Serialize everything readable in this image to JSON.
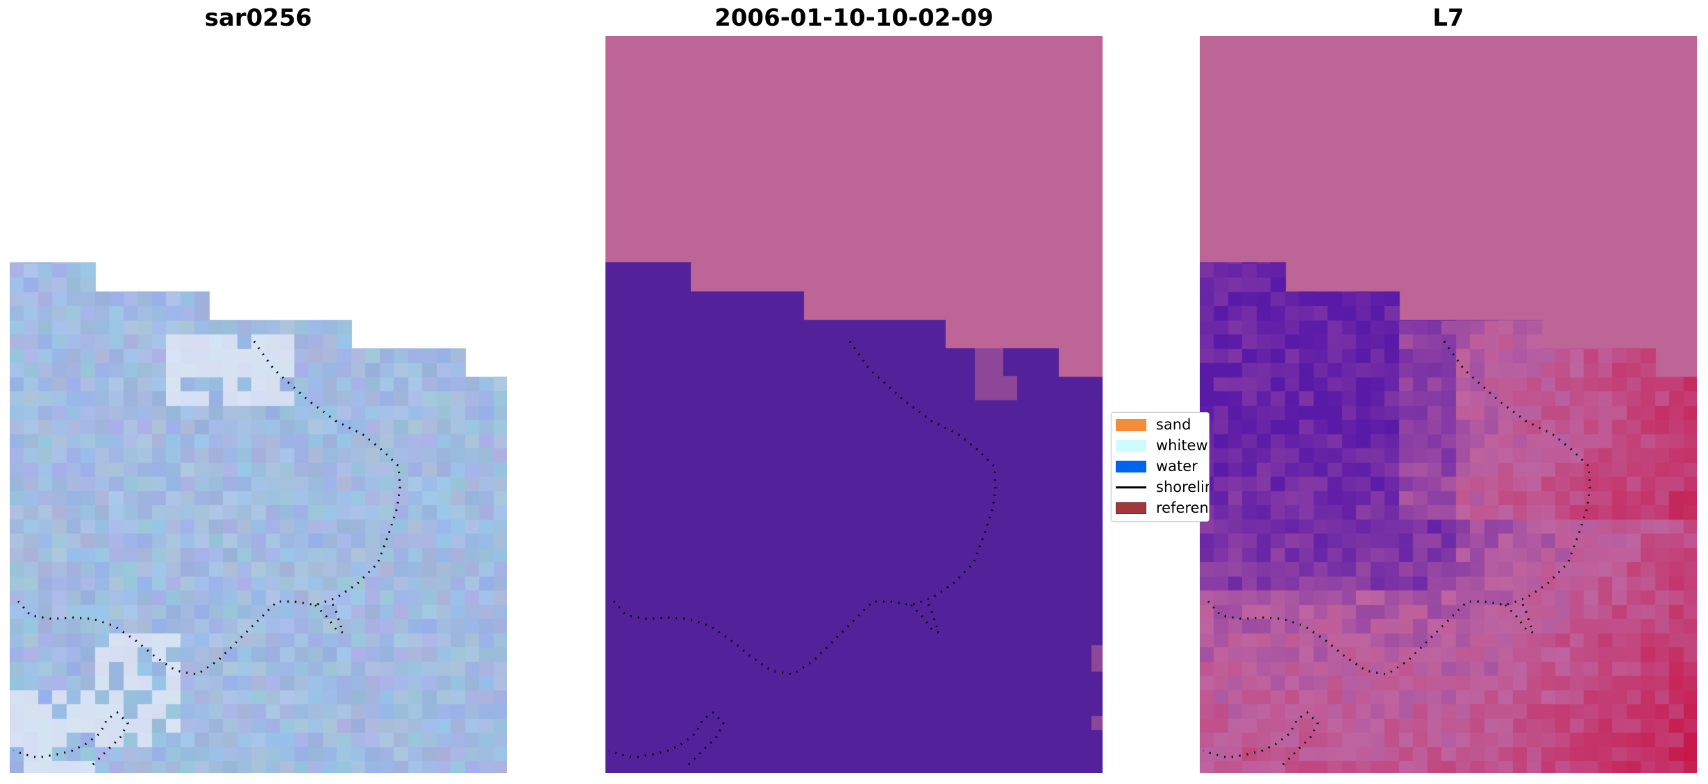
{
  "panels": [
    {
      "title": "sar0256"
    },
    {
      "title": "2006-01-10-10-02-09"
    },
    {
      "title": "L7"
    }
  ],
  "legend": {
    "items": [
      {
        "label": "sand",
        "color": "#f58c3c",
        "kind": "patch"
      },
      {
        "label": "whitewater",
        "color": "#ccfcfc",
        "kind": "patch"
      },
      {
        "label": "water",
        "color": "#0064f0",
        "kind": "patch"
      },
      {
        "label": "shoreline",
        "color": "#000000",
        "kind": "line"
      },
      {
        "label": "reference",
        "color": "#a0383c",
        "kind": "patch"
      }
    ]
  },
  "colors": {
    "nodata": "#bd6597",
    "classified_water": "#53229a",
    "rgb_base": "#98b4dc",
    "index_low": "#5a1aa8",
    "index_high": "#c8184a"
  }
}
